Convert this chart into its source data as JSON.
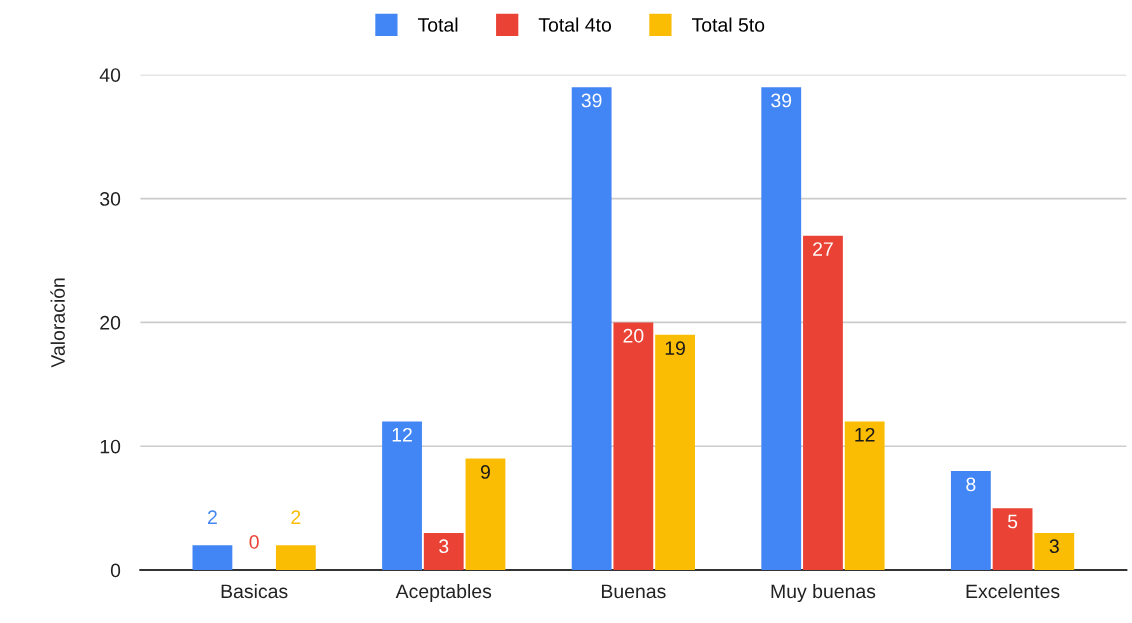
{
  "chart_data": {
    "type": "bar",
    "ylabel": "Valoración",
    "categories": [
      "Basicas",
      "Aceptables",
      "Buenas",
      "Muy buenas",
      "Excelentes"
    ],
    "series": [
      {
        "name": "Total",
        "color": "#4285f4",
        "values": [
          2,
          12,
          39,
          39,
          8
        ]
      },
      {
        "name": "Total 4to",
        "color": "#ea4335",
        "values": [
          0,
          3,
          20,
          27,
          5
        ]
      },
      {
        "name": "Total 5to",
        "color": "#fbbc04",
        "values": [
          2,
          9,
          19,
          12,
          3
        ]
      }
    ],
    "ylim": [
      0,
      40
    ],
    "yticks": [
      0,
      10,
      20,
      30,
      40
    ],
    "grid": "y",
    "legend": "top",
    "data_labels": true
  }
}
